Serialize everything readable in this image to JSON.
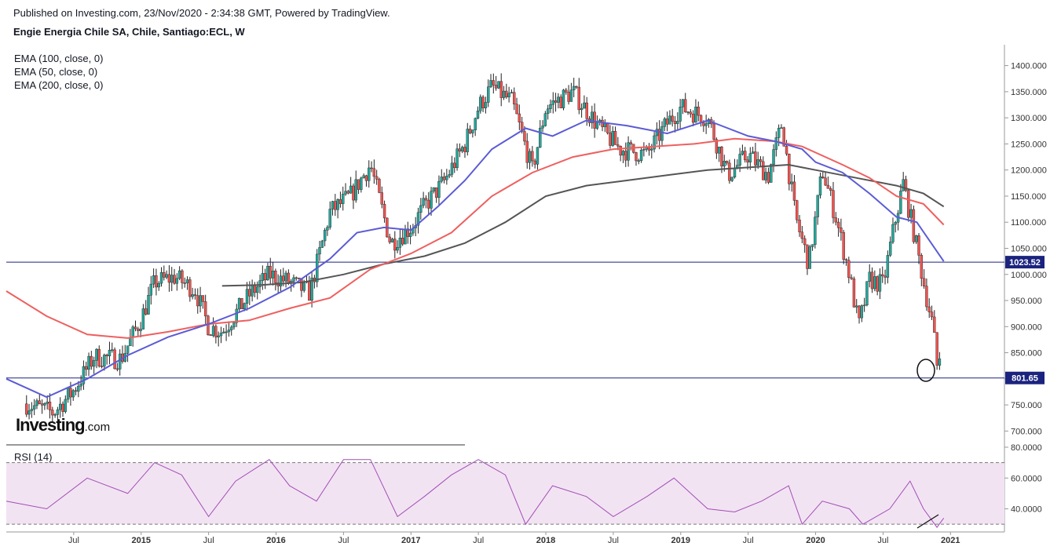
{
  "header": {
    "published": "Published on Investing.com, 23/Nov/2020 - 2:34:38 GMT, Powered by TradingView.",
    "symbol": "Engie Energia Chile SA, Chile, Santiago:ECL, W"
  },
  "legend": [
    "EMA (100, close, 0)",
    "EMA (50, close, 0)",
    "EMA (200, close, 0)"
  ],
  "rsi_label": "RSI (14)",
  "logo": {
    "main": "Investing",
    "suffix": ".com"
  },
  "chart_data": [
    {
      "type": "candlestick",
      "title": "Engie Energia Chile SA, Chile, Santiago:ECL, W",
      "ylim": [
        675,
        1440
      ],
      "y_ticks": [
        "1400.000",
        "1350.000",
        "1300.000",
        "1250.000",
        "1200.000",
        "1150.000",
        "1100.000",
        "1050.000",
        "1000.000",
        "950.000",
        "900.000",
        "850.000",
        "800.000",
        "750.000",
        "700.000"
      ],
      "x_ticks": [
        {
          "label": "Jul",
          "t": 2014.5,
          "major": false
        },
        {
          "label": "2015",
          "t": 2015.0,
          "major": true
        },
        {
          "label": "Jul",
          "t": 2015.5,
          "major": false
        },
        {
          "label": "2016",
          "t": 2016.0,
          "major": true
        },
        {
          "label": "Jul",
          "t": 2016.5,
          "major": false
        },
        {
          "label": "2017",
          "t": 2017.0,
          "major": true
        },
        {
          "label": "Jul",
          "t": 2017.5,
          "major": false
        },
        {
          "label": "2018",
          "t": 2018.0,
          "major": true
        },
        {
          "label": "Jul",
          "t": 2018.5,
          "major": false
        },
        {
          "label": "2019",
          "t": 2019.0,
          "major": true
        },
        {
          "label": "Jul",
          "t": 2019.5,
          "major": false
        },
        {
          "label": "2020",
          "t": 2020.0,
          "major": true
        },
        {
          "label": "Jul",
          "t": 2020.5,
          "major": false
        },
        {
          "label": "2021",
          "t": 2021.0,
          "major": true
        }
      ],
      "colors": {
        "up": "#26a69a",
        "down": "#ef5350",
        "ema50": "#5b5bd6",
        "ema100": "#ef5f5f",
        "ema200": "#555555",
        "level": "#1a237e"
      },
      "levels": [
        {
          "value": 1023.52,
          "label": "1023.52"
        },
        {
          "value": 801.65,
          "label": "801.65"
        }
      ],
      "price_path": [
        [
          2014.15,
          752
        ],
        [
          2014.35,
          735
        ],
        [
          2014.5,
          778
        ],
        [
          2014.65,
          842
        ],
        [
          2014.85,
          838
        ],
        [
          2015.0,
          915
        ],
        [
          2015.1,
          985
        ],
        [
          2015.25,
          995
        ],
        [
          2015.4,
          970
        ],
        [
          2015.5,
          900
        ],
        [
          2015.6,
          890
        ],
        [
          2015.8,
          960
        ],
        [
          2015.95,
          1000
        ],
        [
          2016.1,
          985
        ],
        [
          2016.25,
          965
        ],
        [
          2016.4,
          1120
        ],
        [
          2016.55,
          1150
        ],
        [
          2016.7,
          1210
        ],
        [
          2016.85,
          1060
        ],
        [
          2017.0,
          1090
        ],
        [
          2017.1,
          1130
        ],
        [
          2017.25,
          1180
        ],
        [
          2017.4,
          1250
        ],
        [
          2017.5,
          1320
        ],
        [
          2017.6,
          1360
        ],
        [
          2017.75,
          1330
        ],
        [
          2017.9,
          1200
        ],
        [
          2018.0,
          1320
        ],
        [
          2018.2,
          1350
        ],
        [
          2018.4,
          1280
        ],
        [
          2018.55,
          1240
        ],
        [
          2018.75,
          1230
        ],
        [
          2018.9,
          1290
        ],
        [
          2019.0,
          1320
        ],
        [
          2019.2,
          1300
        ],
        [
          2019.35,
          1190
        ],
        [
          2019.5,
          1230
        ],
        [
          2019.65,
          1190
        ],
        [
          2019.75,
          1290
        ],
        [
          2019.85,
          1110
        ],
        [
          2019.95,
          1020
        ],
        [
          2020.05,
          1200
        ],
        [
          2020.15,
          1110
        ],
        [
          2020.25,
          1000
        ],
        [
          2020.32,
          900
        ],
        [
          2020.4,
          990
        ],
        [
          2020.5,
          980
        ],
        [
          2020.58,
          1090
        ],
        [
          2020.65,
          1175
        ],
        [
          2020.72,
          1090
        ],
        [
          2020.82,
          960
        ],
        [
          2020.87,
          900
        ],
        [
          2020.9,
          825
        ],
        [
          2020.93,
          855
        ]
      ],
      "ema50": [
        [
          2014.0,
          800
        ],
        [
          2014.3,
          765
        ],
        [
          2014.6,
          800
        ],
        [
          2014.9,
          845
        ],
        [
          2015.2,
          880
        ],
        [
          2015.5,
          905
        ],
        [
          2015.8,
          935
        ],
        [
          2016.1,
          975
        ],
        [
          2016.4,
          1030
        ],
        [
          2016.6,
          1080
        ],
        [
          2016.8,
          1090
        ],
        [
          2017.0,
          1085
        ],
        [
          2017.2,
          1130
        ],
        [
          2017.4,
          1180
        ],
        [
          2017.6,
          1240
        ],
        [
          2017.85,
          1280
        ],
        [
          2018.05,
          1265
        ],
        [
          2018.3,
          1295
        ],
        [
          2018.6,
          1285
        ],
        [
          2018.9,
          1270
        ],
        [
          2019.2,
          1295
        ],
        [
          2019.5,
          1265
        ],
        [
          2019.7,
          1255
        ],
        [
          2019.9,
          1240
        ],
        [
          2020.0,
          1215
        ],
        [
          2020.2,
          1195
        ],
        [
          2020.4,
          1155
        ],
        [
          2020.6,
          1110
        ],
        [
          2020.75,
          1100
        ],
        [
          2020.95,
          1025
        ]
      ],
      "ema100": [
        [
          2014.0,
          968
        ],
        [
          2014.3,
          920
        ],
        [
          2014.6,
          885
        ],
        [
          2014.9,
          878
        ],
        [
          2015.2,
          890
        ],
        [
          2015.5,
          905
        ],
        [
          2015.8,
          912
        ],
        [
          2016.1,
          935
        ],
        [
          2016.4,
          955
        ],
        [
          2016.7,
          1010
        ],
        [
          2017.0,
          1040
        ],
        [
          2017.3,
          1080
        ],
        [
          2017.6,
          1150
        ],
        [
          2017.9,
          1195
        ],
        [
          2018.2,
          1225
        ],
        [
          2018.5,
          1240
        ],
        [
          2018.8,
          1245
        ],
        [
          2019.1,
          1250
        ],
        [
          2019.4,
          1260
        ],
        [
          2019.7,
          1255
        ],
        [
          2019.9,
          1245
        ],
        [
          2020.2,
          1210
        ],
        [
          2020.4,
          1185
        ],
        [
          2020.6,
          1150
        ],
        [
          2020.8,
          1135
        ],
        [
          2020.95,
          1095
        ]
      ],
      "ema200": [
        [
          2015.6,
          978
        ],
        [
          2015.9,
          980
        ],
        [
          2016.2,
          985
        ],
        [
          2016.5,
          1000
        ],
        [
          2016.8,
          1020
        ],
        [
          2017.1,
          1035
        ],
        [
          2017.4,
          1060
        ],
        [
          2017.7,
          1100
        ],
        [
          2018.0,
          1150
        ],
        [
          2018.3,
          1170
        ],
        [
          2018.6,
          1180
        ],
        [
          2018.9,
          1190
        ],
        [
          2019.2,
          1200
        ],
        [
          2019.5,
          1205
        ],
        [
          2019.8,
          1210
        ],
        [
          2020.0,
          1200
        ],
        [
          2020.3,
          1185
        ],
        [
          2020.6,
          1170
        ],
        [
          2020.8,
          1155
        ],
        [
          2020.95,
          1130
        ]
      ]
    },
    {
      "type": "line",
      "title": "RSI (14)",
      "ylim": [
        25,
        80
      ],
      "y_ticks": [
        "80.0000",
        "60.0000",
        "40.0000"
      ],
      "band": [
        30,
        70
      ],
      "colors": {
        "line": "#a14fb4",
        "band": "#f2e3f3"
      },
      "points": [
        [
          2014.0,
          45
        ],
        [
          2014.3,
          40
        ],
        [
          2014.6,
          60
        ],
        [
          2014.9,
          50
        ],
        [
          2015.1,
          70
        ],
        [
          2015.3,
          62
        ],
        [
          2015.5,
          35
        ],
        [
          2015.7,
          58
        ],
        [
          2015.95,
          72
        ],
        [
          2016.1,
          55
        ],
        [
          2016.3,
          45
        ],
        [
          2016.5,
          72
        ],
        [
          2016.7,
          72
        ],
        [
          2016.9,
          35
        ],
        [
          2017.1,
          48
        ],
        [
          2017.3,
          62
        ],
        [
          2017.5,
          72
        ],
        [
          2017.7,
          62
        ],
        [
          2017.85,
          30
        ],
        [
          2018.05,
          55
        ],
        [
          2018.3,
          48
        ],
        [
          2018.5,
          35
        ],
        [
          2018.75,
          48
        ],
        [
          2018.95,
          60
        ],
        [
          2019.2,
          40
        ],
        [
          2019.4,
          38
        ],
        [
          2019.6,
          45
        ],
        [
          2019.8,
          55
        ],
        [
          2019.9,
          30
        ],
        [
          2020.05,
          45
        ],
        [
          2020.25,
          40
        ],
        [
          2020.35,
          30
        ],
        [
          2020.55,
          40
        ],
        [
          2020.7,
          58
        ],
        [
          2020.8,
          40
        ],
        [
          2020.9,
          28
        ],
        [
          2020.95,
          34
        ]
      ]
    }
  ]
}
